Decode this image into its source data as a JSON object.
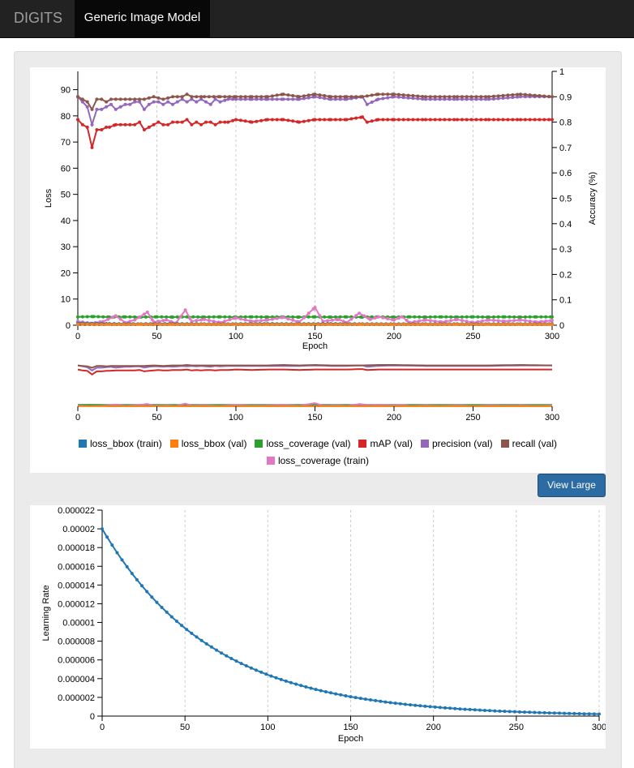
{
  "navbar": {
    "brand": "DIGITS",
    "active_tab": "Generic Image Model"
  },
  "buttons": {
    "view_large": "View Large"
  },
  "colors": {
    "loss_bbox_train": "#1f77b4",
    "loss_bbox_val": "#ff7f0e",
    "loss_coverage_val": "#2ca02c",
    "map_val": "#d62728",
    "precision_val": "#9467bd",
    "recall_val": "#8c564b",
    "loss_coverage_train": "#e377c2"
  },
  "chart_data": [
    {
      "type": "line",
      "xlabel": "Epoch",
      "ylabel": "Loss",
      "y2label": "Accuracy (%)",
      "xlim": [
        0,
        300
      ],
      "ylim": [
        0,
        97
      ],
      "y2lim": [
        0,
        1
      ],
      "xticks": [
        0,
        50,
        100,
        150,
        200,
        250,
        300
      ],
      "yticks": [
        0,
        10,
        20,
        30,
        40,
        50,
        60,
        70,
        80,
        90
      ],
      "y2ticks": [
        "0",
        "0.1",
        "0.2",
        "0.3",
        "0.4",
        "0.5",
        "0.6",
        "0.7",
        "0.8",
        "0.9",
        "1"
      ],
      "grid": "vertical dashed",
      "legend_position": "bottom",
      "legend": [
        "loss_bbox (train)",
        "loss_bbox (val)",
        "loss_coverage (val)",
        "mAP (val)",
        "precision (val)",
        "recall (val)",
        "loss_coverage (train)"
      ],
      "series": [
        {
          "name": "mAP (val)",
          "axis": "y2",
          "points": [
            [
              0,
              0.81
            ],
            [
              3,
              0.79
            ],
            [
              6,
              0.78
            ],
            [
              9,
              0.7
            ],
            [
              12,
              0.77
            ],
            [
              15,
              0.77
            ],
            [
              18,
              0.78
            ],
            [
              20,
              0.78
            ],
            [
              24,
              0.79
            ],
            [
              27,
              0.79
            ],
            [
              30,
              0.79
            ],
            [
              36,
              0.79
            ],
            [
              39,
              0.8
            ],
            [
              42,
              0.77
            ],
            [
              45,
              0.78
            ],
            [
              48,
              0.79
            ],
            [
              51,
              0.8
            ],
            [
              54,
              0.79
            ],
            [
              57,
              0.79
            ],
            [
              60,
              0.8
            ],
            [
              63,
              0.8
            ],
            [
              66,
              0.8
            ],
            [
              69,
              0.81
            ],
            [
              72,
              0.79
            ],
            [
              75,
              0.8
            ],
            [
              78,
              0.79
            ],
            [
              81,
              0.8
            ],
            [
              84,
              0.8
            ],
            [
              87,
              0.79
            ],
            [
              90,
              0.8
            ],
            [
              95,
              0.8
            ],
            [
              100,
              0.81
            ],
            [
              110,
              0.8
            ],
            [
              120,
              0.81
            ],
            [
              130,
              0.81
            ],
            [
              140,
              0.8
            ],
            [
              150,
              0.81
            ],
            [
              160,
              0.81
            ],
            [
              170,
              0.81
            ],
            [
              180,
              0.82
            ],
            [
              183,
              0.8
            ],
            [
              190,
              0.81
            ],
            [
              200,
              0.81
            ],
            [
              220,
              0.81
            ],
            [
              240,
              0.81
            ],
            [
              260,
              0.81
            ],
            [
              280,
              0.81
            ],
            [
              300,
              0.81
            ]
          ]
        },
        {
          "name": "precision (val)",
          "axis": "y2",
          "points": [
            [
              0,
              0.9
            ],
            [
              3,
              0.88
            ],
            [
              6,
              0.86
            ],
            [
              9,
              0.79
            ],
            [
              12,
              0.85
            ],
            [
              15,
              0.85
            ],
            [
              18,
              0.86
            ],
            [
              21,
              0.87
            ],
            [
              24,
              0.85
            ],
            [
              27,
              0.86
            ],
            [
              30,
              0.87
            ],
            [
              33,
              0.87
            ],
            [
              36,
              0.88
            ],
            [
              39,
              0.88
            ],
            [
              42,
              0.85
            ],
            [
              45,
              0.87
            ],
            [
              48,
              0.88
            ],
            [
              51,
              0.88
            ],
            [
              54,
              0.87
            ],
            [
              57,
              0.88
            ],
            [
              60,
              0.87
            ],
            [
              63,
              0.88
            ],
            [
              66,
              0.89
            ],
            [
              69,
              0.88
            ],
            [
              72,
              0.89
            ],
            [
              75,
              0.88
            ],
            [
              78,
              0.89
            ],
            [
              81,
              0.88
            ],
            [
              84,
              0.87
            ],
            [
              87,
              0.89
            ],
            [
              90,
              0.88
            ],
            [
              95,
              0.89
            ],
            [
              100,
              0.89
            ],
            [
              110,
              0.89
            ],
            [
              120,
              0.89
            ],
            [
              130,
              0.89
            ],
            [
              140,
              0.89
            ],
            [
              150,
              0.9
            ],
            [
              160,
              0.89
            ],
            [
              170,
              0.89
            ],
            [
              180,
              0.9
            ],
            [
              183,
              0.87
            ],
            [
              190,
              0.89
            ],
            [
              200,
              0.9
            ],
            [
              220,
              0.89
            ],
            [
              240,
              0.89
            ],
            [
              260,
              0.89
            ],
            [
              280,
              0.9
            ],
            [
              300,
              0.9
            ]
          ]
        },
        {
          "name": "recall (val)",
          "axis": "y2",
          "points": [
            [
              0,
              0.9
            ],
            [
              3,
              0.89
            ],
            [
              6,
              0.88
            ],
            [
              9,
              0.85
            ],
            [
              12,
              0.89
            ],
            [
              15,
              0.89
            ],
            [
              18,
              0.88
            ],
            [
              21,
              0.89
            ],
            [
              24,
              0.89
            ],
            [
              27,
              0.89
            ],
            [
              30,
              0.89
            ],
            [
              36,
              0.89
            ],
            [
              42,
              0.89
            ],
            [
              48,
              0.9
            ],
            [
              54,
              0.89
            ],
            [
              60,
              0.9
            ],
            [
              66,
              0.9
            ],
            [
              69,
              0.91
            ],
            [
              72,
              0.9
            ],
            [
              80,
              0.9
            ],
            [
              90,
              0.9
            ],
            [
              100,
              0.9
            ],
            [
              110,
              0.9
            ],
            [
              120,
              0.9
            ],
            [
              130,
              0.91
            ],
            [
              140,
              0.9
            ],
            [
              150,
              0.91
            ],
            [
              160,
              0.9
            ],
            [
              170,
              0.9
            ],
            [
              180,
              0.9
            ],
            [
              190,
              0.91
            ],
            [
              200,
              0.91
            ],
            [
              220,
              0.9
            ],
            [
              240,
              0.9
            ],
            [
              260,
              0.9
            ],
            [
              280,
              0.91
            ],
            [
              300,
              0.9
            ]
          ]
        },
        {
          "name": "loss_coverage (val)",
          "axis": "y",
          "points": [
            [
              0,
              3.2
            ],
            [
              10,
              3.3
            ],
            [
              20,
              3.1
            ],
            [
              30,
              3.2
            ],
            [
              40,
              3.1
            ],
            [
              50,
              3.2
            ],
            [
              60,
              3.1
            ],
            [
              70,
              3.2
            ],
            [
              80,
              3.1
            ],
            [
              90,
              3.2
            ],
            [
              100,
              3.1
            ],
            [
              110,
              3.2
            ],
            [
              120,
              3.1
            ],
            [
              130,
              3.2
            ],
            [
              140,
              3.1
            ],
            [
              150,
              3.2
            ],
            [
              160,
              3.1
            ],
            [
              170,
              3.2
            ],
            [
              180,
              3.1
            ],
            [
              190,
              3.2
            ],
            [
              200,
              3.1
            ],
            [
              210,
              3.2
            ],
            [
              220,
              3.1
            ],
            [
              230,
              3.2
            ],
            [
              240,
              3.1
            ],
            [
              250,
              3.2
            ],
            [
              260,
              3.1
            ],
            [
              270,
              3.2
            ],
            [
              280,
              3.1
            ],
            [
              290,
              3.2
            ],
            [
              300,
              3.2
            ]
          ]
        },
        {
          "name": "loss_coverage (train)",
          "axis": "y",
          "points": [
            [
              0,
              1.5
            ],
            [
              8,
              0.7
            ],
            [
              16,
              1.4
            ],
            [
              24,
              3.6
            ],
            [
              30,
              1.0
            ],
            [
              36,
              2.0
            ],
            [
              42,
              4.2
            ],
            [
              44,
              5.0
            ],
            [
              48,
              1.2
            ],
            [
              56,
              2.0
            ],
            [
              62,
              0.8
            ],
            [
              68,
              5.8
            ],
            [
              72,
              1.5
            ],
            [
              80,
              2.2
            ],
            [
              90,
              1.0
            ],
            [
              100,
              2.8
            ],
            [
              110,
              1.5
            ],
            [
              120,
              2.0
            ],
            [
              130,
              3.0
            ],
            [
              140,
              1.2
            ],
            [
              150,
              6.8
            ],
            [
              155,
              1.5
            ],
            [
              165,
              2.2
            ],
            [
              170,
              1.0
            ],
            [
              178,
              4.6
            ],
            [
              185,
              2.2
            ],
            [
              190,
              3.2
            ],
            [
              200,
              2.0
            ],
            [
              205,
              3.2
            ],
            [
              210,
              1.0
            ],
            [
              220,
              2.0
            ],
            [
              230,
              1.2
            ],
            [
              240,
              2.2
            ],
            [
              250,
              1.0
            ],
            [
              260,
              2.0
            ],
            [
              270,
              1.5
            ],
            [
              280,
              2.0
            ],
            [
              290,
              1.2
            ],
            [
              300,
              1.8
            ]
          ]
        },
        {
          "name": "loss_bbox (train)",
          "axis": "y",
          "points": [
            [
              0,
              0.8
            ],
            [
              20,
              0.6
            ],
            [
              40,
              0.5
            ],
            [
              60,
              0.6
            ],
            [
              80,
              0.5
            ],
            [
              100,
              0.5
            ],
            [
              120,
              0.6
            ],
            [
              140,
              0.5
            ],
            [
              160,
              0.6
            ],
            [
              180,
              0.5
            ],
            [
              200,
              0.5
            ],
            [
              220,
              0.5
            ],
            [
              240,
              0.5
            ],
            [
              260,
              0.5
            ],
            [
              280,
              0.5
            ],
            [
              300,
              0.5
            ]
          ]
        },
        {
          "name": "loss_bbox (val)",
          "axis": "y",
          "points": [
            [
              0,
              0.4
            ],
            [
              20,
              0.3
            ],
            [
              40,
              0.3
            ],
            [
              60,
              0.3
            ],
            [
              80,
              0.3
            ],
            [
              100,
              0.3
            ],
            [
              120,
              0.3
            ],
            [
              140,
              0.3
            ],
            [
              160,
              0.3
            ],
            [
              180,
              0.3
            ],
            [
              200,
              0.3
            ],
            [
              220,
              0.3
            ],
            [
              240,
              0.3
            ],
            [
              260,
              0.3
            ],
            [
              280,
              0.3
            ],
            [
              300,
              0.3
            ]
          ]
        }
      ]
    },
    {
      "type": "line",
      "xlabel": "Epoch",
      "ylabel": "Learning Rate",
      "xlim": [
        0,
        300
      ],
      "ylim": [
        0,
        2.2e-05
      ],
      "xticks": [
        "0",
        "50",
        "100",
        "150",
        "200",
        "250",
        "300"
      ],
      "yticks": [
        "0",
        "0.000002",
        "0.000004",
        "0.000006",
        "0.000008",
        "0.00001",
        "0.000012",
        "0.000014",
        "0.000016",
        "0.000018",
        "0.00002",
        "0.000022"
      ],
      "grid": "vertical dashed",
      "series": [
        {
          "name": "",
          "start": 2e-05,
          "decay_per_epoch": 0.985,
          "epoch_step": 3
        }
      ]
    }
  ]
}
